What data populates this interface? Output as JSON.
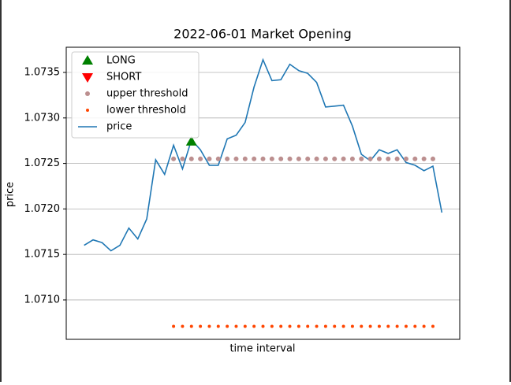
{
  "chart_data": {
    "type": "line",
    "title": "2022-06-01 Market Opening",
    "x_label": "time interval",
    "y_label": "price",
    "xlim": [
      -2,
      42
    ],
    "ylim": [
      1.070567,
      1.073777
    ],
    "yticks": [
      {
        "value": 1.071,
        "label": "1.0710"
      },
      1.0715,
      {
        "value": 1.072,
        "label": "1.0720"
      },
      1.0725,
      {
        "value": 1.073,
        "label": "1.0730"
      },
      1.0735
    ],
    "grid": "y",
    "legend": "upper left",
    "series": [
      {
        "name": "LONG",
        "kind": "scatter",
        "marker": "^",
        "color": "#008000",
        "x": [
          12
        ],
        "values": [
          1.07274
        ]
      },
      {
        "name": "SHORT",
        "kind": "scatter",
        "marker": "v",
        "color": "#ff0000",
        "x": [],
        "values": []
      },
      {
        "name": "upper threshold",
        "kind": "scatter",
        "marker": "o",
        "color": "#bc8f8f",
        "x": [
          10,
          11,
          12,
          13,
          14,
          15,
          16,
          17,
          18,
          19,
          20,
          21,
          22,
          23,
          24,
          25,
          26,
          27,
          28,
          29,
          30,
          31,
          32,
          33,
          34,
          35,
          36,
          37,
          38,
          39
        ],
        "values": [
          1.07255,
          1.07255,
          1.07255,
          1.07255,
          1.07255,
          1.07255,
          1.07255,
          1.07255,
          1.07255,
          1.07255,
          1.07255,
          1.07255,
          1.07255,
          1.07255,
          1.07255,
          1.07255,
          1.07255,
          1.07255,
          1.07255,
          1.07255,
          1.07255,
          1.07255,
          1.07255,
          1.07255,
          1.07255,
          1.07255,
          1.07255,
          1.07255,
          1.07255,
          1.07255
        ]
      },
      {
        "name": "lower threshold",
        "kind": "scatter",
        "marker": ".",
        "color": "#ff4500",
        "x": [
          10,
          11,
          12,
          13,
          14,
          15,
          16,
          17,
          18,
          19,
          20,
          21,
          22,
          23,
          24,
          25,
          26,
          27,
          28,
          29,
          30,
          31,
          32,
          33,
          34,
          35,
          36,
          37,
          38,
          39
        ],
        "values": [
          1.07071,
          1.07071,
          1.07071,
          1.07071,
          1.07071,
          1.07071,
          1.07071,
          1.07071,
          1.07071,
          1.07071,
          1.07071,
          1.07071,
          1.07071,
          1.07071,
          1.07071,
          1.07071,
          1.07071,
          1.07071,
          1.07071,
          1.07071,
          1.07071,
          1.07071,
          1.07071,
          1.07071,
          1.07071,
          1.07071,
          1.07071,
          1.07071,
          1.07071,
          1.07071
        ]
      },
      {
        "name": "price",
        "kind": "line",
        "color": "#1f77b4",
        "x": [
          0,
          1,
          2,
          3,
          4,
          5,
          6,
          7,
          8,
          9,
          10,
          11,
          12,
          13,
          14,
          15,
          16,
          17,
          18,
          19,
          20,
          21,
          22,
          23,
          24,
          25,
          26,
          27,
          28,
          29,
          30,
          31,
          32,
          33,
          34,
          35,
          36,
          37,
          38,
          39,
          40
        ],
        "values": [
          1.0716,
          1.07166,
          1.07163,
          1.07154,
          1.0716,
          1.07179,
          1.07167,
          1.07189,
          1.07254,
          1.07238,
          1.0727,
          1.07244,
          1.07276,
          1.07265,
          1.07248,
          1.07248,
          1.07277,
          1.07281,
          1.07295,
          1.07334,
          1.07364,
          1.07341,
          1.07342,
          1.07359,
          1.07352,
          1.07349,
          1.07339,
          1.07312,
          1.07313,
          1.07314,
          1.07291,
          1.0726,
          1.07253,
          1.07265,
          1.07261,
          1.07265,
          1.07251,
          1.07248,
          1.07242,
          1.07247,
          1.07196
        ]
      }
    ]
  }
}
